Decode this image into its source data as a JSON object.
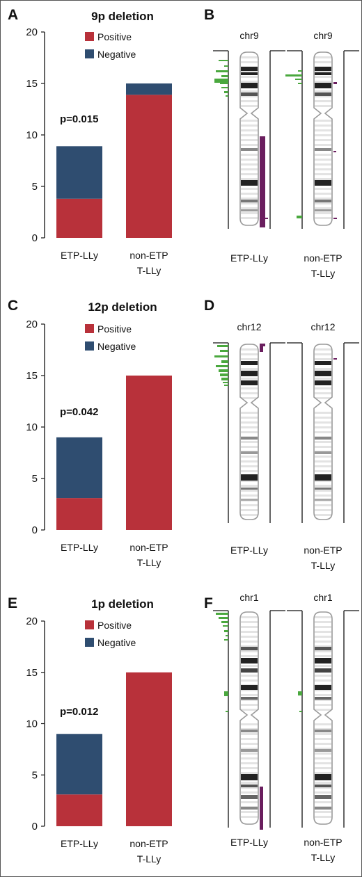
{
  "colors": {
    "positive": "#b8313a",
    "negative": "#2f4d70",
    "gain": "#4aa83e",
    "loss": "#6a1e5e"
  },
  "panels": [
    {
      "letter": "A"
    },
    {
      "letter": "B"
    },
    {
      "letter": "C"
    },
    {
      "letter": "D"
    },
    {
      "letter": "E"
    },
    {
      "letter": "F"
    }
  ],
  "chart_data": [
    {
      "type": "bar",
      "panel": "A",
      "title": "9p deletion",
      "categories": [
        "ETP-LLy",
        "non-ETP\nT-LLy"
      ],
      "series": [
        {
          "name": "Positive",
          "values": [
            3.8,
            13.9
          ]
        },
        {
          "name": "Negative",
          "values": [
            5.1,
            1.1
          ]
        }
      ],
      "stacked": true,
      "ylim": [
        0,
        20
      ],
      "yticks": [
        "0",
        "5",
        "10",
        "15",
        "20"
      ],
      "annotation": "p=0.015",
      "legend_position": "top-center"
    },
    {
      "type": "bar",
      "panel": "C",
      "title": "12p deletion",
      "categories": [
        "ETP-LLy",
        "non-ETP\nT-LLy"
      ],
      "series": [
        {
          "name": "Positive",
          "values": [
            3.1,
            15
          ]
        },
        {
          "name": "Negative",
          "values": [
            5.9,
            0
          ]
        }
      ],
      "stacked": true,
      "ylim": [
        0,
        20
      ],
      "yticks": [
        "0",
        "5",
        "10",
        "15",
        "20"
      ],
      "annotation": "p=0.042",
      "legend_position": "top-center"
    },
    {
      "type": "bar",
      "panel": "E",
      "title": "1p deletion",
      "categories": [
        "ETP-LLy",
        "non-ETP\nT-LLy"
      ],
      "series": [
        {
          "name": "Positive",
          "values": [
            3.1,
            15
          ]
        },
        {
          "name": "Negative",
          "values": [
            5.9,
            0
          ]
        }
      ],
      "stacked": true,
      "ylim": [
        0,
        20
      ],
      "yticks": [
        "0",
        "5",
        "10",
        "15",
        "20"
      ],
      "annotation": "p=0.012",
      "legend_position": "top-center"
    }
  ],
  "chromosome_panels": [
    {
      "panel": "B",
      "chromosome": "chr9",
      "groups": [
        "ETP-LLy",
        "non-ETP\nT-LLy"
      ]
    },
    {
      "panel": "D",
      "chromosome": "chr12",
      "groups": [
        "ETP-LLy",
        "non-ETP\nT-LLy"
      ]
    },
    {
      "panel": "F",
      "chromosome": "chr1",
      "groups": [
        "ETP-LLy",
        "non-ETP\nT-LLy"
      ]
    }
  ]
}
